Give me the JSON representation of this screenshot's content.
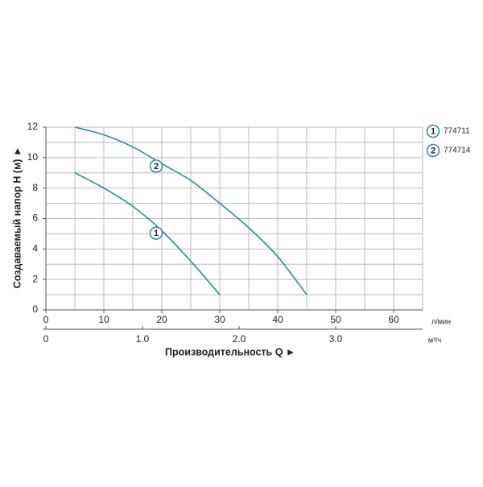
{
  "chart_data": {
    "type": "line",
    "xlabel": "Производительность Q ►",
    "ylabel": "Создаваемый напор H (м) ►",
    "xunit": "л/мин",
    "x2unit": "м³/ч",
    "xlim": [
      0,
      65
    ],
    "xticks": [
      0,
      10,
      20,
      30,
      40,
      50,
      60
    ],
    "x2lim": [
      0,
      3.9
    ],
    "x2ticks": [
      0,
      {
        "value": 1,
        "label": "1.0"
      },
      {
        "value": 2,
        "label": "2.0"
      },
      {
        "value": 3,
        "label": "3.0"
      }
    ],
    "ylim": [
      0,
      12
    ],
    "yticks": [
      0,
      2,
      4,
      6,
      8,
      10,
      12
    ],
    "xgrid": [
      5,
      10,
      15,
      20,
      25,
      30,
      35,
      40,
      45,
      50,
      55,
      60,
      65
    ],
    "ygrid": [
      1,
      2,
      3,
      4,
      5,
      6,
      7,
      8,
      9,
      10,
      11,
      12
    ],
    "grid": true,
    "legend": "right",
    "series": [
      {
        "name": "774711",
        "label": "1",
        "color": "#2a8c9e",
        "x": [
          5,
          10,
          15,
          20,
          25,
          30
        ],
        "values": [
          9,
          8,
          6.8,
          5.2,
          3.2,
          1
        ]
      },
      {
        "name": "774714",
        "label": "2",
        "color": "#2a8c9e",
        "x": [
          5,
          10,
          15,
          20,
          25,
          30,
          35,
          40,
          45
        ],
        "values": [
          12,
          11.5,
          10.7,
          9.6,
          8.5,
          7,
          5.4,
          3.5,
          1
        ]
      }
    ]
  }
}
